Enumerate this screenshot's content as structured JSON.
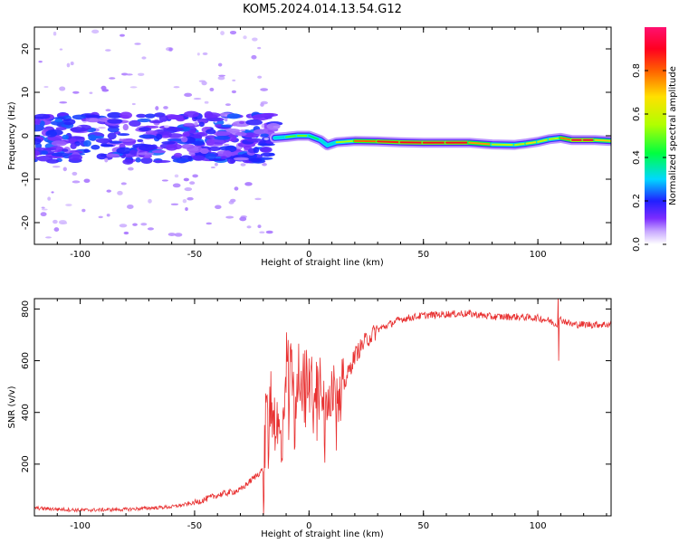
{
  "title": "KOM5.2024.014.13.54.G12",
  "chart_data": [
    {
      "type": "heatmap",
      "xlabel": "Height of straight line (km)",
      "ylabel": "Frequency (Hz)",
      "xlim": [
        -120,
        132
      ],
      "ylim": [
        -25,
        25
      ],
      "x_ticks": [
        -100,
        -50,
        0,
        50,
        100
      ],
      "y_ticks": [
        -20,
        -10,
        0,
        10,
        20
      ],
      "grid": false,
      "colorbar": {
        "label": "Normalized spectral amplitude",
        "range": [
          0,
          1
        ],
        "ticks": [
          0.0,
          0.2,
          0.4,
          0.6,
          0.8
        ],
        "colormap": "rainbow"
      },
      "noise_region": {
        "x_range": [
          -120,
          -15
        ],
        "freq_spread_hz": [
          -12,
          8
        ],
        "amplitude": [
          0.05,
          0.3
        ]
      },
      "signal_trace": {
        "x": [
          -15,
          -10,
          -5,
          0,
          5,
          8,
          12,
          20,
          30,
          40,
          50,
          60,
          70,
          80,
          90,
          95,
          100,
          105,
          110,
          115,
          120,
          125,
          132
        ],
        "freq_hz": [
          -0.5,
          -0.3,
          0,
          0,
          -1.0,
          -2.2,
          -1.5,
          -1.2,
          -1.3,
          -1.5,
          -1.6,
          -1.6,
          -1.6,
          -2.0,
          -2.1,
          -1.8,
          -1.4,
          -0.8,
          -0.5,
          -1.0,
          -1.0,
          -1.0,
          -1.2
        ],
        "amplitude": [
          0.25,
          0.4,
          0.55,
          0.45,
          0.35,
          0.3,
          0.35,
          0.75,
          0.85,
          0.9,
          0.9,
          0.9,
          0.9,
          0.6,
          0.55,
          0.6,
          0.7,
          0.5,
          0.65,
          0.9,
          0.95,
          0.9,
          0.5
        ]
      }
    },
    {
      "type": "line",
      "xlabel": "Height of straight line (km)",
      "ylabel": "SNR (v/v)",
      "xlim": [
        -120,
        132
      ],
      "ylim": [
        0,
        840
      ],
      "x_ticks": [
        -100,
        -50,
        0,
        50,
        100
      ],
      "y_ticks": [
        200,
        400,
        600,
        800
      ],
      "grid": false,
      "color": "#e83030",
      "series": [
        {
          "x": [
            -120,
            -100,
            -80,
            -60,
            -50,
            -45,
            -40,
            -30,
            -25,
            -20,
            -18,
            -15,
            -12,
            -10,
            -5,
            0,
            5,
            10,
            15,
            20,
            25,
            30,
            40,
            50,
            60,
            70,
            80,
            90,
            100,
            105,
            108,
            110,
            115,
            120,
            132
          ],
          "values": [
            30,
            22,
            25,
            35,
            50,
            65,
            80,
            100,
            140,
            180,
            500,
            380,
            280,
            600,
            560,
            520,
            540,
            480,
            500,
            620,
            680,
            720,
            760,
            775,
            780,
            782,
            770,
            770,
            765,
            755,
            740,
            760,
            740,
            740,
            740
          ]
        }
      ],
      "spike": {
        "x": 109,
        "values": [
          600,
          850
        ]
      }
    }
  ]
}
